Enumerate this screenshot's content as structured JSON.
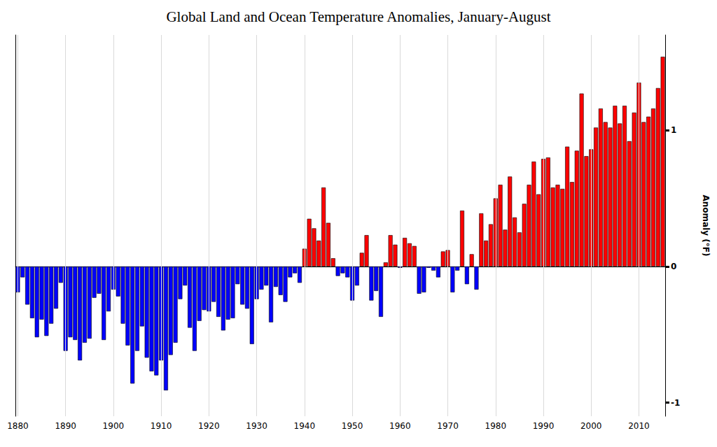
{
  "chart_data": {
    "type": "bar",
    "title": "Global Land and Ocean Temperature Anomalies, January-August",
    "y_label": "Anomaly (°F)",
    "x": [
      1880,
      1881,
      1882,
      1883,
      1884,
      1885,
      1886,
      1887,
      1888,
      1889,
      1890,
      1891,
      1892,
      1893,
      1894,
      1895,
      1896,
      1897,
      1898,
      1899,
      1900,
      1901,
      1902,
      1903,
      1904,
      1905,
      1906,
      1907,
      1908,
      1909,
      1910,
      1911,
      1912,
      1913,
      1914,
      1915,
      1916,
      1917,
      1918,
      1919,
      1920,
      1921,
      1922,
      1923,
      1924,
      1925,
      1926,
      1927,
      1928,
      1929,
      1930,
      1931,
      1932,
      1933,
      1934,
      1935,
      1936,
      1937,
      1938,
      1939,
      1940,
      1941,
      1942,
      1943,
      1944,
      1945,
      1946,
      1947,
      1948,
      1949,
      1950,
      1951,
      1952,
      1953,
      1954,
      1955,
      1956,
      1957,
      1958,
      1959,
      1960,
      1961,
      1962,
      1963,
      1964,
      1965,
      1966,
      1967,
      1968,
      1969,
      1970,
      1971,
      1972,
      1973,
      1974,
      1975,
      1976,
      1977,
      1978,
      1979,
      1980,
      1981,
      1982,
      1983,
      1984,
      1985,
      1986,
      1987,
      1988,
      1989,
      1990,
      1991,
      1992,
      1993,
      1994,
      1995,
      1996,
      1997,
      1998,
      1999,
      2000,
      2001,
      2002,
      2003,
      2004,
      2005,
      2006,
      2007,
      2008,
      2009,
      2010,
      2011,
      2012,
      2013,
      2014,
      2015
    ],
    "values": [
      -0.19,
      -0.08,
      -0.28,
      -0.38,
      -0.52,
      -0.39,
      -0.51,
      -0.42,
      -0.31,
      -0.12,
      -0.62,
      -0.52,
      -0.54,
      -0.69,
      -0.56,
      -0.53,
      -0.23,
      -0.2,
      -0.54,
      -0.33,
      -0.17,
      -0.22,
      -0.42,
      -0.58,
      -0.86,
      -0.62,
      -0.44,
      -0.67,
      -0.77,
      -0.8,
      -0.69,
      -0.91,
      -0.65,
      -0.56,
      -0.24,
      -0.14,
      -0.45,
      -0.62,
      -0.4,
      -0.32,
      -0.33,
      -0.26,
      -0.37,
      -0.47,
      -0.39,
      -0.38,
      -0.13,
      -0.28,
      -0.31,
      -0.57,
      -0.24,
      -0.17,
      -0.14,
      -0.41,
      -0.15,
      -0.21,
      -0.26,
      -0.08,
      -0.05,
      -0.12,
      0.13,
      0.35,
      0.28,
      0.19,
      0.58,
      0.32,
      0.06,
      -0.07,
      -0.05,
      -0.08,
      -0.25,
      -0.14,
      0.1,
      0.23,
      -0.25,
      -0.18,
      -0.37,
      0.03,
      0.23,
      0.16,
      -0.01,
      0.21,
      0.17,
      0.15,
      -0.2,
      -0.19,
      -0.01,
      -0.03,
      -0.08,
      0.11,
      0.12,
      -0.19,
      -0.03,
      0.41,
      -0.13,
      0.09,
      -0.17,
      0.39,
      0.19,
      0.31,
      0.5,
      0.6,
      0.27,
      0.66,
      0.36,
      0.25,
      0.46,
      0.6,
      0.77,
      0.53,
      0.79,
      0.8,
      0.58,
      0.6,
      0.57,
      0.88,
      0.62,
      0.85,
      1.27,
      0.81,
      0.86,
      1.02,
      1.16,
      1.06,
      1.02,
      1.18,
      1.05,
      1.18,
      0.92,
      1.13,
      1.35,
      1.06,
      1.1,
      1.16,
      1.31,
      1.54
    ],
    "colors": [
      "#0000ff",
      "#0000ff",
      "#0000ff",
      "#0000ff",
      "#0000ff",
      "#0000ff",
      "#0000ff",
      "#0000ff",
      "#0000ff",
      "#0000ff",
      "#0000ff",
      "#0000ff",
      "#0000ff",
      "#0000ff",
      "#0000ff",
      "#0000ff",
      "#0000ff",
      "#0000ff",
      "#0000ff",
      "#0000ff",
      "#0000ff",
      "#0000ff",
      "#0000ff",
      "#0000ff",
      "#0000ff",
      "#0000ff",
      "#0000ff",
      "#0000ff",
      "#0000ff",
      "#0000ff",
      "#0000ff",
      "#0000ff",
      "#0000ff",
      "#0000ff",
      "#0000ff",
      "#0000ff",
      "#0000ff",
      "#0000ff",
      "#0000ff",
      "#0000ff",
      "#0000ff",
      "#0000ff",
      "#0000ff",
      "#0000ff",
      "#0000ff",
      "#0000ff",
      "#0000ff",
      "#0000ff",
      "#0000ff",
      "#0000ff",
      "#0000ff",
      "#0000ff",
      "#0000ff",
      "#0000ff",
      "#0000ff",
      "#0000ff",
      "#0000ff",
      "#0000ff",
      "#0000ff",
      "#0000ff",
      "#ff0000",
      "#ff0000",
      "#ff0000",
      "#ff0000",
      "#ff0000",
      "#ff0000",
      "#ff0000",
      "#0000ff",
      "#0000ff",
      "#0000ff",
      "#0000ff",
      "#0000ff",
      "#ff0000",
      "#ff0000",
      "#0000ff",
      "#0000ff",
      "#0000ff",
      "#ff0000",
      "#ff0000",
      "#ff0000",
      "#0000ff",
      "#ff0000",
      "#ff0000",
      "#ff0000",
      "#0000ff",
      "#0000ff",
      "#0000ff",
      "#0000ff",
      "#0000ff",
      "#ff0000",
      "#ff0000",
      "#0000ff",
      "#0000ff",
      "#ff0000",
      "#0000ff",
      "#ff0000",
      "#0000ff",
      "#ff0000",
      "#ff0000",
      "#ff0000",
      "#ff0000",
      "#ff0000",
      "#ff0000",
      "#ff0000",
      "#ff0000",
      "#ff0000",
      "#ff0000",
      "#ff0000",
      "#ff0000",
      "#ff0000",
      "#ff0000",
      "#ff0000",
      "#ff0000",
      "#ff0000",
      "#ff0000",
      "#ff0000",
      "#ff0000",
      "#ff0000",
      "#ff0000",
      "#ff0000",
      "#ff0000",
      "#ff0000",
      "#ff0000",
      "#ff0000",
      "#ff0000",
      "#ff0000",
      "#ff0000",
      "#ff0000",
      "#ff0000",
      "#ff0000",
      "#ff0000",
      "#ff0000",
      "#ff0000",
      "#ff0000",
      "#ff0000",
      "#ff0000"
    ],
    "xlim": [
      1879.5,
      2015.5
    ],
    "xticks": [
      1880,
      1890,
      1900,
      1910,
      1920,
      1930,
      1940,
      1950,
      1960,
      1970,
      1980,
      1990,
      2000,
      2010
    ],
    "ylim": [
      -1.1,
      1.7
    ],
    "yticks": [
      -1,
      0,
      1
    ],
    "grid": true
  }
}
